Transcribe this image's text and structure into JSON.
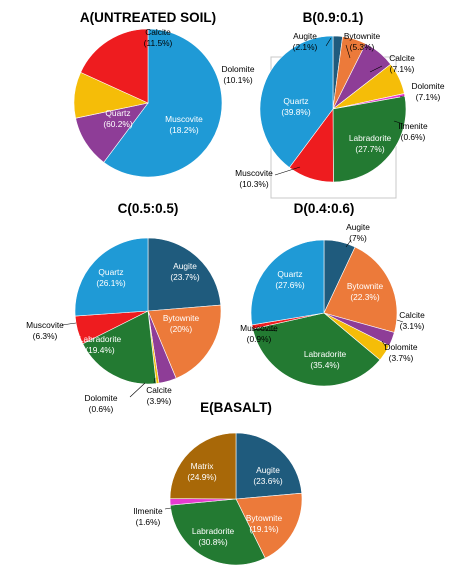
{
  "colors": {
    "quartz": "#1f9ad6",
    "calcite": "#8e3d97",
    "dolomite": "#f5bd08",
    "muscovite": "#ee1c1f",
    "augite": "#1f5b7d",
    "bytownite": "#ec7a3a",
    "ilmenite": "#e63bd0",
    "labradorite": "#237a32",
    "matrix": "#a86808"
  },
  "chart_data": [
    {
      "type": "pie",
      "title": "A(UNTREATED SOIL)",
      "series": [
        {
          "label": "Quartz",
          "value": 60.2,
          "pct": "(60.2%)",
          "color": "quartz"
        },
        {
          "label": "Calcite",
          "value": 11.5,
          "pct": "(11.5%)",
          "color": "calcite"
        },
        {
          "label": "Dolomite",
          "value": 10.1,
          "pct": "(10.1%)",
          "color": "dolomite"
        },
        {
          "label": "Muscovite",
          "value": 18.2,
          "pct": "(18.2%)",
          "color": "muscovite"
        }
      ]
    },
    {
      "type": "pie",
      "title": "B(0.9:0.1)",
      "series": [
        {
          "label": "Augite",
          "value": 2.1,
          "pct": "(2.1%)",
          "color": "augite"
        },
        {
          "label": "Bytownite",
          "value": 5.3,
          "pct": "(5.3%)",
          "color": "bytownite"
        },
        {
          "label": "Calcite",
          "value": 7.1,
          "pct": "(7.1%)",
          "color": "calcite"
        },
        {
          "label": "Dolomite",
          "value": 7.1,
          "pct": "(7.1%)",
          "color": "dolomite"
        },
        {
          "label": "Ilmenite",
          "value": 0.6,
          "pct": "(0.6%)",
          "color": "ilmenite"
        },
        {
          "label": "Labradorite",
          "value": 27.7,
          "pct": "(27.7%)",
          "color": "labradorite"
        },
        {
          "label": "Muscovite",
          "value": 10.3,
          "pct": "(10.3%)",
          "color": "muscovite"
        },
        {
          "label": "Quartz",
          "value": 39.8,
          "pct": "(39.8%)",
          "color": "quartz"
        }
      ]
    },
    {
      "type": "pie",
      "title": "C(0.5:0.5)",
      "series": [
        {
          "label": "Augite",
          "value": 23.7,
          "pct": "(23.7%)",
          "color": "augite"
        },
        {
          "label": "Bytownite",
          "value": 20,
          "pct": "(20%)",
          "color": "bytownite"
        },
        {
          "label": "Calcite",
          "value": 3.9,
          "pct": "(3.9%)",
          "color": "calcite"
        },
        {
          "label": "Dolomite",
          "value": 0.6,
          "pct": "(0.6%)",
          "color": "dolomite"
        },
        {
          "label": "Labradorite",
          "value": 19.4,
          "pct": "(19.4%)",
          "color": "labradorite"
        },
        {
          "label": "Muscovite",
          "value": 6.3,
          "pct": "(6.3%)",
          "color": "muscovite"
        },
        {
          "label": "Quartz",
          "value": 26.1,
          "pct": "(26.1%)",
          "color": "quartz"
        }
      ]
    },
    {
      "type": "pie",
      "title": "D(0.4:0.6)",
      "series": [
        {
          "label": "Augite",
          "value": 7,
          "pct": "(7%)",
          "color": "augite"
        },
        {
          "label": "Bytownite",
          "value": 22.3,
          "pct": "(22.3%)",
          "color": "bytownite"
        },
        {
          "label": "Calcite",
          "value": 3.1,
          "pct": "(3.1%)",
          "color": "calcite"
        },
        {
          "label": "Dolomite",
          "value": 3.7,
          "pct": "(3.7%)",
          "color": "dolomite"
        },
        {
          "label": "Labradorite",
          "value": 35.4,
          "pct": "(35.4%)",
          "color": "labradorite"
        },
        {
          "label": "Muscovite",
          "value": 0.9,
          "pct": "(0.9%)",
          "color": "muscovite"
        },
        {
          "label": "Quartz",
          "value": 27.6,
          "pct": "(27.6%)",
          "color": "quartz"
        }
      ]
    },
    {
      "type": "pie",
      "title": "E(BASALT)",
      "series": [
        {
          "label": "Augite",
          "value": 23.6,
          "pct": "(23.6%)",
          "color": "augite"
        },
        {
          "label": "Bytownite",
          "value": 19.1,
          "pct": "(19.1%)",
          "color": "bytownite"
        },
        {
          "label": "Labradorite",
          "value": 30.8,
          "pct": "(30.8%)",
          "color": "labradorite"
        },
        {
          "label": "Ilmenite",
          "value": 1.6,
          "pct": "(1.6%)",
          "color": "ilmenite"
        },
        {
          "label": "Matrix",
          "value": 24.9,
          "pct": "(24.9%)",
          "color": "matrix"
        }
      ]
    }
  ]
}
